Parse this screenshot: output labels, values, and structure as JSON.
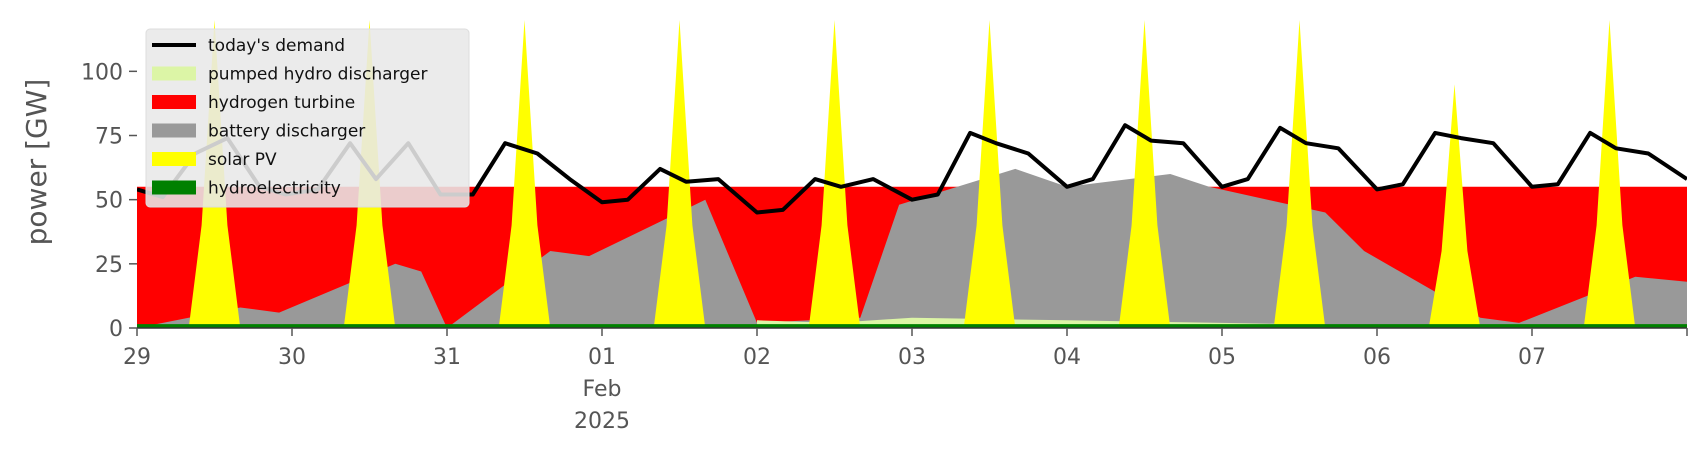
{
  "chart_data": {
    "type": "area",
    "title": "",
    "xlabel": "",
    "ylabel": "power [GW]",
    "ylim": [
      0,
      120
    ],
    "yticks": [
      0,
      25,
      50,
      75,
      100
    ],
    "xlim": [
      "2025-01-29 00:00",
      "2025-02-08 00:00"
    ],
    "xticks": [
      {
        "date": "2025-01-29",
        "label": "29"
      },
      {
        "date": "2025-01-30",
        "label": "30"
      },
      {
        "date": "2025-01-31",
        "label": "31"
      },
      {
        "date": "2025-02-01",
        "label": "01",
        "sub": [
          "Feb",
          "2025"
        ]
      },
      {
        "date": "2025-02-02",
        "label": "02"
      },
      {
        "date": "2025-02-03",
        "label": "03"
      },
      {
        "date": "2025-02-04",
        "label": "04"
      },
      {
        "date": "2025-02-05",
        "label": "05"
      },
      {
        "date": "2025-02-06",
        "label": "06"
      },
      {
        "date": "2025-02-07",
        "label": "07"
      }
    ],
    "grid": false,
    "legend_position": "top-left",
    "legend_order": [
      "demand",
      "pumped",
      "hydrogen",
      "battery",
      "solar",
      "hydro"
    ],
    "series": [
      {
        "key": "hydro",
        "name": "hydroelectricity",
        "color": "#008000",
        "x": [
          "2025-01-29 00:00",
          "2025-02-08 00:00"
        ],
        "y": [
          1.5,
          1.5
        ]
      },
      {
        "key": "solar",
        "name": "solar PV",
        "color": "#ffff00",
        "x": [
          "2025-01-29 00:00",
          "2025-01-29 08:00",
          "2025-01-29 10:00",
          "2025-01-29 12:00",
          "2025-01-29 14:00",
          "2025-01-29 16:00",
          "2025-01-30 08:00",
          "2025-01-30 10:00",
          "2025-01-30 12:00",
          "2025-01-30 14:00",
          "2025-01-30 16:00",
          "2025-01-31 08:00",
          "2025-01-31 10:00",
          "2025-01-31 12:00",
          "2025-01-31 14:00",
          "2025-01-31 16:00",
          "2025-02-01 08:00",
          "2025-02-01 10:00",
          "2025-02-01 12:00",
          "2025-02-01 14:00",
          "2025-02-01 16:00",
          "2025-02-02 08:00",
          "2025-02-02 10:00",
          "2025-02-02 12:00",
          "2025-02-02 14:00",
          "2025-02-02 16:00",
          "2025-02-03 08:00",
          "2025-02-03 10:00",
          "2025-02-03 12:00",
          "2025-02-03 14:00",
          "2025-02-03 16:00",
          "2025-02-04 08:00",
          "2025-02-04 10:00",
          "2025-02-04 12:00",
          "2025-02-04 14:00",
          "2025-02-04 16:00",
          "2025-02-05 08:00",
          "2025-02-05 10:00",
          "2025-02-05 12:00",
          "2025-02-05 14:00",
          "2025-02-05 16:00",
          "2025-02-06 08:00",
          "2025-02-06 10:00",
          "2025-02-06 12:00",
          "2025-02-06 14:00",
          "2025-02-06 16:00",
          "2025-02-07 08:00",
          "2025-02-07 10:00",
          "2025-02-07 12:00",
          "2025-02-07 14:00",
          "2025-02-07 16:00",
          "2025-02-08 00:00"
        ],
        "y": [
          0,
          0,
          40,
          120,
          40,
          0,
          0,
          40,
          120,
          40,
          0,
          0,
          40,
          120,
          40,
          0,
          0,
          40,
          120,
          40,
          0,
          0,
          40,
          120,
          40,
          0,
          0,
          40,
          120,
          40,
          0,
          0,
          40,
          120,
          40,
          0,
          0,
          40,
          120,
          40,
          0,
          0,
          30,
          95,
          30,
          0,
          0,
          40,
          120,
          40,
          0,
          0
        ]
      },
      {
        "key": "battery",
        "name": "battery discharger",
        "color": "#999999",
        "x": [
          "2025-01-29 00:00",
          "2025-01-29 16:00",
          "2025-01-29 22:00",
          "2025-01-30 16:00",
          "2025-01-30 20:00",
          "2025-01-31 00:00",
          "2025-01-31 16:00",
          "2025-01-31 22:00",
          "2025-02-01 16:00",
          "2025-02-02 00:00",
          "2025-02-02 16:00",
          "2025-02-02 22:00",
          "2025-02-03 16:00",
          "2025-02-04 00:00",
          "2025-02-04 16:00",
          "2025-02-04 22:00",
          "2025-02-05 16:00",
          "2025-02-05 22:00",
          "2025-02-06 16:00",
          "2025-02-06 22:00",
          "2025-02-07 16:00",
          "2025-02-08 00:00"
        ],
        "y": [
          0,
          8,
          6,
          25,
          22,
          0,
          30,
          28,
          50,
          2,
          4,
          48,
          62,
          55,
          60,
          55,
          45,
          30,
          4,
          2,
          20,
          18
        ]
      },
      {
        "key": "hydrogen",
        "name": "hydrogen turbine",
        "color": "#ff0000",
        "x": [
          "2025-01-29 00:00",
          "2025-02-08 00:00"
        ],
        "y": [
          55,
          55
        ]
      },
      {
        "key": "pumped",
        "name": "pumped hydro discharger",
        "color": "#dcf5a6",
        "x": [
          "2025-02-02 00:00",
          "2025-02-02 12:00",
          "2025-02-03 00:00",
          "2025-02-04 00:00",
          "2025-02-05 00:00",
          "2025-02-06 00:00"
        ],
        "y": [
          3,
          2,
          4,
          3,
          2,
          1
        ]
      },
      {
        "key": "demand",
        "name": "today's demand",
        "color": "#000000",
        "x": [
          "2025-01-29 00:00",
          "2025-01-29 04:00",
          "2025-01-29 09:00",
          "2025-01-29 14:00",
          "2025-01-29 19:00",
          "2025-01-29 23:00",
          "2025-01-30 04:00",
          "2025-01-30 09:00",
          "2025-01-30 13:00",
          "2025-01-30 18:00",
          "2025-01-30 23:00",
          "2025-01-31 04:00",
          "2025-01-31 09:00",
          "2025-01-31 14:00",
          "2025-01-31 19:00",
          "2025-02-01 00:00",
          "2025-02-01 04:00",
          "2025-02-01 09:00",
          "2025-02-01 13:00",
          "2025-02-01 18:00",
          "2025-02-02 00:00",
          "2025-02-02 04:00",
          "2025-02-02 09:00",
          "2025-02-02 13:00",
          "2025-02-02 18:00",
          "2025-02-03 00:00",
          "2025-02-03 04:00",
          "2025-02-03 09:00",
          "2025-02-03 13:00",
          "2025-02-03 18:00",
          "2025-02-04 00:00",
          "2025-02-04 04:00",
          "2025-02-04 09:00",
          "2025-02-04 13:00",
          "2025-02-04 18:00",
          "2025-02-05 00:00",
          "2025-02-05 04:00",
          "2025-02-05 09:00",
          "2025-02-05 13:00",
          "2025-02-05 18:00",
          "2025-02-06 00:00",
          "2025-02-06 04:00",
          "2025-02-06 09:00",
          "2025-02-06 13:00",
          "2025-02-06 18:00",
          "2025-02-07 00:00",
          "2025-02-07 04:00",
          "2025-02-07 09:00",
          "2025-02-07 13:00",
          "2025-02-07 18:00",
          "2025-02-08 00:00"
        ],
        "y": [
          54,
          51,
          68,
          74,
          55,
          52,
          54,
          72,
          58,
          72,
          52,
          52,
          72,
          68,
          58,
          49,
          50,
          62,
          57,
          58,
          45,
          46,
          58,
          55,
          58,
          50,
          52,
          76,
          72,
          68,
          55,
          58,
          79,
          73,
          72,
          55,
          58,
          78,
          72,
          70,
          54,
          56,
          76,
          74,
          72,
          55,
          56,
          76,
          70,
          68,
          58
        ]
      }
    ]
  }
}
